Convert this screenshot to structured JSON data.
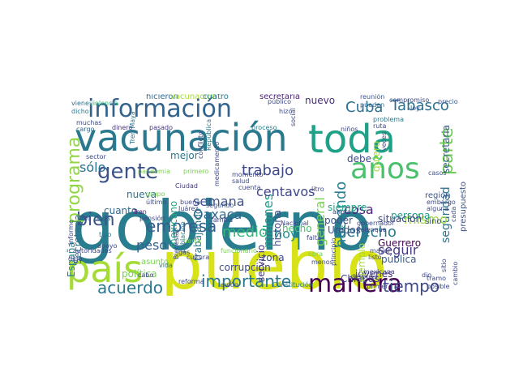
{
  "word_cloud": {
    "words": [
      {
        "text": "gobierno",
        "color": "#287d8e"
      },
      {
        "text": "pueblo",
        "color": "#d8e219"
      },
      {
        "text": "vacunación",
        "color": "#2a788e"
      },
      {
        "text": "toda",
        "color": "#1fa187"
      },
      {
        "text": "país",
        "color": "#a5db36"
      },
      {
        "text": "manera",
        "color": "#440154"
      },
      {
        "text": "información",
        "color": "#33638d"
      },
      {
        "text": "años",
        "color": "#4ac16d"
      },
      {
        "text": "gente",
        "color": "#3b528b"
      },
      {
        "text": "Tabasco",
        "color": "#2d708e"
      },
      {
        "text": "Cuba",
        "color": "#2d708e"
      },
      {
        "text": "bien",
        "color": "#3b528b"
      },
      {
        "text": "acuerdo",
        "color": "#2a788e"
      },
      {
        "text": "importante",
        "color": "#2a788e"
      },
      {
        "text": "tiempo",
        "color": "#3e4989"
      },
      {
        "text": "programa",
        "color": "#90d743"
      },
      {
        "text": "empresa",
        "color": "#355f8d"
      },
      {
        "text": "trabajo",
        "color": "#3e4989"
      },
      {
        "text": "derecho",
        "color": "#2a788e"
      },
      {
        "text": "medio",
        "color": "#35b779"
      },
      {
        "text": "parte",
        "color": "#6ece58"
      },
      {
        "text": "seguridad",
        "color": "#2c728e"
      },
      {
        "text": "secretaria",
        "color": "#365c8d"
      },
      {
        "text": "haciendo",
        "color": "#26828e"
      },
      {
        "text": "millones",
        "color": "#1f9e89"
      },
      {
        "text": "centavos",
        "color": "#404688"
      },
      {
        "text": "semana",
        "color": "#3b528b"
      },
      {
        "text": "Oaxaca",
        "color": "#31688e"
      },
      {
        "text": "sólo",
        "color": "#2c728e"
      },
      {
        "text": "hoy",
        "color": "#21918c"
      },
      {
        "text": "cosa",
        "color": "#482878"
      },
      {
        "text": "peso",
        "color": "#33638d"
      },
      {
        "text": "seguir",
        "color": "#443983"
      },
      {
        "text": "mismo",
        "color": "#9fda3a"
      },
      {
        "text": "general",
        "color": "#7ad151"
      },
      {
        "text": "nueva",
        "color": "#2c728e"
      },
      {
        "text": "cuanto",
        "color": "#31688e"
      },
      {
        "text": "mejor",
        "color": "#2a788e"
      },
      {
        "text": "Guerrero",
        "color": "#440154"
      },
      {
        "text": "pública",
        "color": "#365c8d"
      },
      {
        "text": "Chiapas",
        "color": "#443a83"
      },
      {
        "text": "jóvenes",
        "color": "#472d7b"
      },
      {
        "text": "persona",
        "color": "#1f9e89"
      },
      {
        "text": "situación",
        "color": "#3e4989"
      },
      {
        "text": "Unidos",
        "color": "#3b528b"
      },
      {
        "text": "historia",
        "color": "#3e4989"
      },
      {
        "text": "corrupción",
        "color": "#3e4989"
      },
      {
        "text": "España",
        "color": "#26828e"
      },
      {
        "text": "Secretaría",
        "color": "#2c728e"
      },
      {
        "text": "política",
        "color": "#75d054"
      },
      {
        "text": "nuevo",
        "color": "#472d7b"
      },
      {
        "text": "hecho",
        "color": "#4ac16d"
      },
      {
        "text": "debe",
        "color": "#3e4989"
      },
      {
        "text": "siempre",
        "color": "#21a685"
      },
      {
        "text": "poder",
        "color": "#3b528b"
      },
      {
        "text": "servicio",
        "color": "#46337f"
      },
      {
        "text": "quiero",
        "color": "#a0da39"
      },
      {
        "text": "mexicano",
        "color": "#22a884"
      },
      {
        "text": "trabajando",
        "color": "#2a788e"
      },
      {
        "text": "asunto",
        "color": "#7ad151"
      },
      {
        "text": "ejemplo",
        "color": "#a5db36"
      },
      {
        "text": "zona",
        "color": "#3e4989"
      },
      {
        "text": "región",
        "color": "#39568c"
      },
      {
        "text": "sino",
        "color": "#3e4989"
      },
      {
        "text": "presupuesto",
        "color": "#3b528b"
      },
      {
        "text": "secretaria",
        "color": "#482173"
      },
      {
        "text": "hicieron",
        "color": "#31688e"
      },
      {
        "text": "vacunación",
        "color": "#a8db34"
      },
      {
        "text": "cuatro",
        "color": "#287c8e"
      },
      {
        "text": "reunión",
        "color": "#39558c"
      },
      {
        "text": "pueden",
        "color": "#31688e"
      },
      {
        "text": "dinero",
        "color": "#46327e"
      },
      {
        "text": "pasado",
        "color": "#463480"
      },
      {
        "text": "Tren Maya",
        "color": "#2a788e"
      },
      {
        "text": "proceso",
        "color": "#26828e"
      },
      {
        "text": "problema",
        "color": "#2a788e"
      },
      {
        "text": "precio",
        "color": "#39568c"
      },
      {
        "text": "ley",
        "color": "#3b528b"
      },
      {
        "text": "muchas",
        "color": "#3e4989"
      },
      {
        "text": "cargo",
        "color": "#31688e"
      },
      {
        "text": "dicho",
        "color": "#2a788e"
      },
      {
        "text": "viene",
        "color": "#2c728e"
      },
      {
        "text": "violencia",
        "color": "#2fb47c"
      },
      {
        "text": "casos",
        "color": "#3b528b"
      },
      {
        "text": "litro",
        "color": "#3e4989"
      },
      {
        "text": "buena",
        "color": "#404688"
      },
      {
        "text": "último",
        "color": "#3e4989"
      },
      {
        "text": "grupo",
        "color": "#7ad151"
      },
      {
        "text": "Ciudad",
        "color": "#453781"
      },
      {
        "text": "Juárez",
        "color": "#3e4989"
      },
      {
        "text": "segundo",
        "color": "#3b528b"
      },
      {
        "text": "Tren",
        "color": "#482475"
      },
      {
        "text": "pensión",
        "color": "#3e4989"
      },
      {
        "text": "sido",
        "color": "#3e4989"
      },
      {
        "text": "dosis",
        "color": "#31688e"
      },
      {
        "text": "tipo",
        "color": "#2a788e"
      },
      {
        "text": "tierra",
        "color": "#7ad151"
      },
      {
        "text": "familia",
        "color": "#3e4989"
      },
      {
        "text": "Bienestar",
        "color": "#3e4989"
      },
      {
        "text": "población",
        "color": "#2a788e"
      },
      {
        "text": "gas",
        "color": "#3e4989"
      },
      {
        "text": "cabo",
        "color": "#3e4989"
      },
      {
        "text": "reforma",
        "color": "#3e4989"
      },
      {
        "text": "avión",
        "color": "#3e4989"
      },
      {
        "text": "Constitución",
        "color": "#2a788e"
      },
      {
        "text": "después",
        "color": "#3e4989"
      },
      {
        "text": "obra",
        "color": "#7ad151"
      },
      {
        "text": "menos",
        "color": "#3e4989"
      },
      {
        "text": "dio",
        "color": "#3e4989"
      },
      {
        "text": "mexicana",
        "color": "#3e4989"
      },
      {
        "text": "listo",
        "color": "#3e4989"
      },
      {
        "text": "mayor",
        "color": "#3e4989"
      },
      {
        "text": "primer",
        "color": "#3e4989"
      },
      {
        "text": "cambio",
        "color": "#3e4989"
      },
      {
        "text": "cada",
        "color": "#3e4989"
      },
      {
        "text": "Palenque",
        "color": "#3e4989"
      },
      {
        "text": "falta",
        "color": "#3e4989"
      },
      {
        "text": "principio",
        "color": "#3e4989"
      },
      {
        "text": "funcionario",
        "color": "#7ad151"
      },
      {
        "text": "cultura",
        "color": "#3e4989"
      },
      {
        "text": "vida",
        "color": "#2a788e"
      },
      {
        "text": "digo",
        "color": "#3e4989"
      },
      {
        "text": "autoridades",
        "color": "#3e4989"
      },
      {
        "text": "informe",
        "color": "#3e4989"
      },
      {
        "text": "ahora",
        "color": "#3e4989"
      },
      {
        "text": "sitio",
        "color": "#3e4989"
      },
      {
        "text": "sector",
        "color": "#3e4989"
      },
      {
        "text": "público",
        "color": "#3e4989"
      },
      {
        "text": "hizo",
        "color": "#3e4989"
      },
      {
        "text": "social",
        "color": "#3e4989"
      },
      {
        "text": "niños",
        "color": "#3e4989"
      },
      {
        "text": "ruta",
        "color": "#3e4989"
      },
      {
        "text": "primero",
        "color": "#7ad151"
      },
      {
        "text": "conflicto",
        "color": "#3e4989"
      },
      {
        "text": "República",
        "color": "#2a788e"
      },
      {
        "text": "medicamento",
        "color": "#3e4989"
      },
      {
        "text": "momento",
        "color": "#3e4989"
      },
      {
        "text": "cuenta",
        "color": "#3e4989"
      },
      {
        "text": "salud",
        "color": "#3e4989"
      },
      {
        "text": "pandemia",
        "color": "#7ad151"
      },
      {
        "text": "alguna",
        "color": "#3e4989"
      },
      {
        "text": "embargo",
        "color": "#3e4989"
      },
      {
        "text": "veces",
        "color": "#3e4989"
      },
      {
        "text": "compromiso",
        "color": "#3e4989"
      },
      {
        "text": "apoyo",
        "color": "#3e4989"
      },
      {
        "text": "Nacional",
        "color": "#3e4989"
      },
      {
        "text": "gobernador",
        "color": "#3e4989"
      },
      {
        "text": "tramo",
        "color": "#3e4989"
      },
      {
        "text": "posible",
        "color": "#3e4989"
      }
    ]
  }
}
